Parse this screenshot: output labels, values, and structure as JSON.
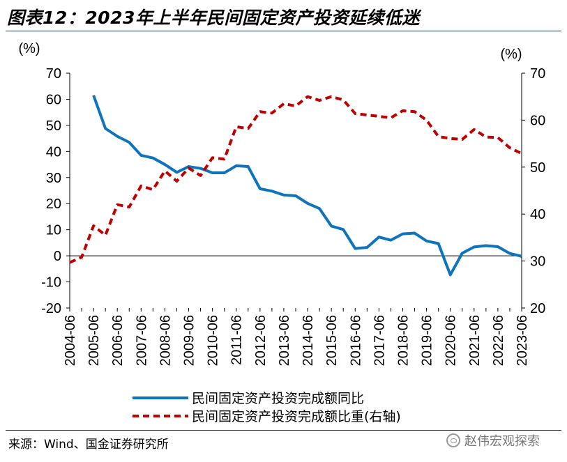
{
  "header": {
    "title": "图表12：2023年上半年民间固定资产投资延续低迷"
  },
  "footer": {
    "source": "来源：Wind、国金证券研究所",
    "watermark": "赵伟宏观探索"
  },
  "colors": {
    "series1": "#0e74bc",
    "series2": "#c00000",
    "rule": "#17375e"
  },
  "icons": {
    "watermark": "wechat-icon"
  },
  "chart_data": {
    "type": "line",
    "x": [
      "2004-06",
      "2004-12",
      "2005-06",
      "2005-12",
      "2006-06",
      "2006-12",
      "2007-06",
      "2007-12",
      "2008-06",
      "2008-12",
      "2009-06",
      "2009-12",
      "2010-06",
      "2010-12",
      "2011-06",
      "2011-12",
      "2012-06",
      "2012-12",
      "2013-06",
      "2013-12",
      "2014-06",
      "2014-12",
      "2015-06",
      "2015-12",
      "2016-06",
      "2016-12",
      "2017-06",
      "2017-12",
      "2018-06",
      "2018-12",
      "2019-06",
      "2019-12",
      "2020-06",
      "2020-12",
      "2021-06",
      "2021-12",
      "2022-06",
      "2022-12",
      "2023-06"
    ],
    "x_tick_labels": [
      "2004-06",
      "2005-06",
      "2006-06",
      "2007-06",
      "2008-06",
      "2009-06",
      "2010-06",
      "2011-06",
      "2012-06",
      "2013-06",
      "2014-06",
      "2015-06",
      "2016-06",
      "2017-06",
      "2018-06",
      "2019-06",
      "2020-06",
      "2021-06",
      "2022-06",
      "2023-06"
    ],
    "y_left": {
      "unit": "(%)",
      "ylim": [
        -20,
        70
      ],
      "ticks": [
        -20,
        -10,
        0,
        10,
        20,
        30,
        40,
        50,
        60,
        70
      ]
    },
    "y_right": {
      "unit": "(%)",
      "ylim": [
        20,
        70
      ],
      "ticks": [
        20,
        30,
        40,
        50,
        60,
        70
      ]
    },
    "series": [
      {
        "name": "民间固定资产投资完成额同比",
        "axis": "left",
        "style": "solid",
        "values": [
          null,
          null,
          61.5,
          48.8,
          45.8,
          43.5,
          38.5,
          37.5,
          35.0,
          32.0,
          34.2,
          33.5,
          31.8,
          31.8,
          34.5,
          34.2,
          25.7,
          24.8,
          23.3,
          23.0,
          20.1,
          18.1,
          11.4,
          10.1,
          2.8,
          3.2,
          7.2,
          6.0,
          8.4,
          8.7,
          5.7,
          4.7,
          -7.3,
          1.0,
          3.4,
          3.9,
          3.5,
          0.9,
          -0.2
        ]
      },
      {
        "name": "民间固定资产投资完成额比重(右轴)",
        "axis": "right",
        "style": "dashed",
        "values": [
          29.7,
          30.8,
          37.5,
          35.5,
          42.0,
          41.5,
          46.0,
          45.2,
          49.2,
          47.0,
          49.8,
          48.2,
          52.0,
          51.7,
          58.6,
          58.2,
          61.8,
          61.5,
          63.5,
          63.0,
          65.0,
          64.2,
          65.0,
          64.3,
          61.4,
          61.1,
          60.8,
          60.5,
          62.0,
          61.8,
          60.0,
          56.5,
          56.1,
          55.9,
          58.0,
          56.4,
          56.3,
          54.1,
          52.9
        ]
      }
    ],
    "legend_position": "bottom",
    "grid": false
  }
}
